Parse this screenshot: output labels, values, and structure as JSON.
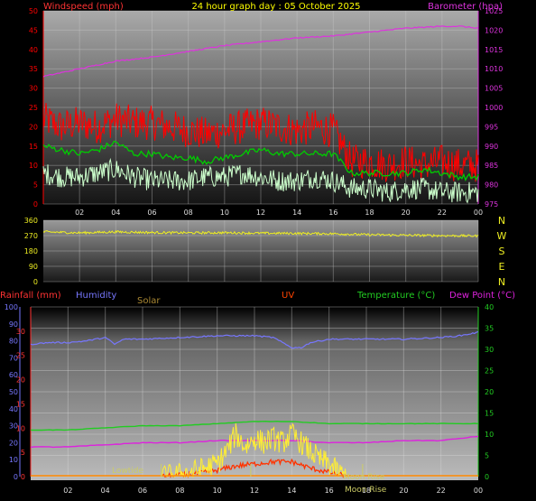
{
  "title": "24 hour graph day : 05 October 2025",
  "colors": {
    "wind": "#ff0000",
    "gust": "#ccffcc",
    "avg": "#00cc00",
    "baro": "#dd33dd",
    "dir": "#eeee22",
    "rain": "#ff3333",
    "humidity": "#7777ff",
    "solar": "#aa8833",
    "uv": "#ff3300",
    "temp": "#22cc22",
    "dew": "#dd22dd",
    "tide": "#cccc66"
  },
  "chart_data": [
    {
      "type": "line",
      "left_axis_label": "Windspeed (mph)",
      "right_axis_label": "Barometer (hpa)",
      "ylim_left": [
        0,
        50
      ],
      "ylim_right": [
        975,
        1025
      ],
      "yticks_left": [
        "0",
        "5",
        "10",
        "15",
        "20",
        "25",
        "30",
        "35",
        "40",
        "45",
        "50"
      ],
      "yticks_right": [
        "975",
        "980",
        "985",
        "990",
        "995",
        "1000",
        "1005",
        "1010",
        "1015",
        "1020",
        "1025"
      ],
      "x_ticks": [
        "02",
        "04",
        "06",
        "08",
        "10",
        "12",
        "14",
        "16",
        "18",
        "20",
        "22",
        "00"
      ],
      "x_hours": [
        2,
        4,
        6,
        8,
        10,
        12,
        14,
        16,
        18,
        20,
        22,
        24
      ],
      "series": [
        {
          "key": "baro",
          "hours": [
            0,
            2,
            4,
            6,
            8,
            10,
            12,
            14,
            16,
            18,
            20,
            22,
            23,
            24
          ],
          "values": [
            1008,
            1010,
            1012,
            1013,
            1014.5,
            1016,
            1017,
            1018,
            1018.5,
            1019.5,
            1020.5,
            1021,
            1021,
            1020.5
          ]
        },
        {
          "key": "wind",
          "hours": [
            0,
            1,
            2,
            3,
            4,
            5,
            6,
            7,
            8,
            9,
            10,
            11,
            12,
            13,
            14,
            15,
            16,
            17,
            18,
            19,
            20,
            21,
            22,
            23,
            24
          ],
          "values": [
            22,
            20,
            21,
            20,
            22,
            21,
            21,
            20,
            19,
            18,
            19,
            20,
            21,
            20,
            19,
            20,
            19,
            11,
            11,
            10,
            11,
            10,
            11,
            10,
            10
          ]
        },
        {
          "key": "avg",
          "hours": [
            0,
            1,
            2,
            3,
            4,
            5,
            6,
            7,
            8,
            9,
            10,
            11,
            12,
            13,
            14,
            15,
            16,
            17,
            18,
            19,
            20,
            21,
            22,
            23,
            24
          ],
          "values": [
            15,
            14,
            13,
            14,
            16,
            13,
            13,
            12,
            12,
            11,
            12,
            13,
            14,
            13,
            13,
            13,
            13,
            8,
            8,
            8,
            8,
            9,
            8,
            7,
            7
          ]
        },
        {
          "key": "gust",
          "hours": [
            0,
            1,
            2,
            3,
            4,
            5,
            6,
            7,
            8,
            9,
            10,
            11,
            12,
            13,
            14,
            15,
            16,
            17,
            18,
            19,
            20,
            21,
            22,
            23,
            24
          ],
          "values": [
            8,
            7,
            7,
            8,
            9,
            7,
            6,
            6,
            6,
            7,
            7,
            8,
            7,
            6,
            6,
            7,
            6,
            4,
            4,
            3,
            4,
            4,
            3,
            3,
            3
          ]
        }
      ]
    },
    {
      "type": "line",
      "ylim": [
        0,
        360
      ],
      "yticks": [
        "0",
        "90",
        "180",
        "270",
        "360"
      ],
      "compass_labels": [
        "N",
        "W",
        "S",
        "E",
        "N"
      ],
      "series": [
        {
          "key": "dir",
          "hours": [
            0,
            2,
            4,
            6,
            8,
            10,
            12,
            14,
            16,
            18,
            20,
            22,
            24
          ],
          "values": [
            292,
            286,
            292,
            288,
            286,
            287,
            284,
            283,
            281,
            275,
            272,
            270,
            268
          ]
        }
      ]
    },
    {
      "type": "line",
      "legend": [
        "Rainfall (mm)",
        "Humidity",
        "Solar",
        "UV",
        "Temperature (°C)",
        "Dew Point (°C)"
      ],
      "yticks_humidity": [
        "0",
        "10",
        "20",
        "30",
        "40",
        "50",
        "60",
        "70",
        "80",
        "90",
        "100"
      ],
      "yticks_rain": [
        "0",
        "5",
        "10",
        "15",
        "20",
        "25",
        "30"
      ],
      "yticks_temp": [
        "0",
        "5",
        "10",
        "15",
        "20",
        "25",
        "30",
        "35",
        "40"
      ],
      "ylim_temp": [
        0,
        40
      ],
      "ylim_humidity": [
        0,
        100
      ],
      "annotations": [
        "Lowtide",
        "Moon Rise",
        "Moon Rise"
      ],
      "series": [
        {
          "key": "humidity",
          "hours": [
            0,
            1,
            2,
            3,
            4,
            4.5,
            5,
            5.5,
            6,
            8,
            10,
            12,
            13,
            14,
            14.5,
            15,
            16,
            18,
            20,
            22,
            23,
            24
          ],
          "values": [
            78,
            79,
            79,
            80,
            82,
            78,
            81,
            81,
            81,
            82,
            83,
            83,
            82,
            76,
            76,
            79,
            81,
            81,
            81,
            82,
            83,
            85
          ]
        },
        {
          "key": "temp",
          "hours": [
            0,
            2,
            4,
            6,
            8,
            10,
            12,
            14,
            16,
            18,
            20,
            22,
            24
          ],
          "values": [
            11,
            11,
            11.5,
            12,
            12,
            12.5,
            13,
            13,
            12.5,
            12.5,
            12.5,
            12.5,
            12.5
          ]
        },
        {
          "key": "dew",
          "hours": [
            0,
            2,
            4,
            6,
            8,
            10,
            12,
            14,
            16,
            18,
            20,
            22,
            24
          ],
          "values": [
            7,
            7,
            7.5,
            8,
            8,
            8.5,
            8.5,
            8.5,
            8,
            8,
            8.5,
            8.5,
            9.5
          ]
        },
        {
          "key": "solar",
          "hours": [
            7,
            8,
            9,
            10,
            10.5,
            11,
            11.5,
            12,
            12.5,
            13,
            13.5,
            14,
            14.5,
            15,
            15.5,
            16,
            16.5,
            17
          ],
          "values": [
            0,
            0.5,
            1.5,
            3,
            6,
            10,
            7,
            9,
            8,
            9,
            8,
            10,
            8,
            6,
            4,
            3,
            1,
            0
          ]
        },
        {
          "key": "uv",
          "hours": [
            7,
            8,
            9,
            10,
            11,
            12,
            13,
            14,
            15,
            16,
            17
          ],
          "values": [
            0,
            0.3,
            0.8,
            1.5,
            2.5,
            3,
            3.5,
            3.5,
            2,
            1,
            0
          ]
        }
      ]
    }
  ]
}
